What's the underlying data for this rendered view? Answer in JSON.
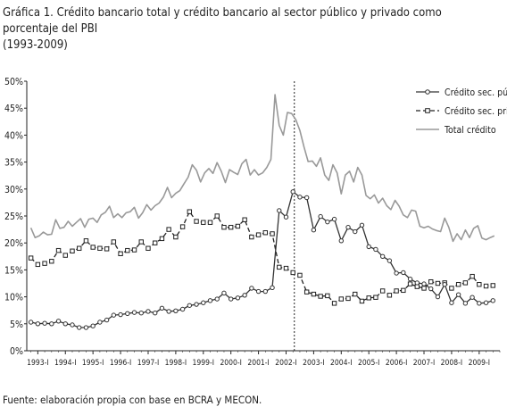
{
  "title_line1": "Gráfica 1. Crédito bancario total y crédito bancario al sector público y privado como porcentaje del PBI",
  "title_line2": "(1993-2009)",
  "source": "Fuente: elaboración propia con base en BCRA y MECON.",
  "chart_data": {
    "type": "line",
    "x_ticks": [
      "1993-I",
      "1994-I",
      "1995-I",
      "1996-I",
      "1997-I",
      "1998-I",
      "1999-I",
      "2000-I",
      "2001-I",
      "2002-I",
      "2003-I",
      "2004-I",
      "2005-I",
      "2006-I",
      "2007-I",
      "2008-I",
      "2009-I"
    ],
    "y_ticks": [
      "0%",
      "5%",
      "10%",
      "15%",
      "20%",
      "25%",
      "30%",
      "35%",
      "40%",
      "45%",
      "50%"
    ],
    "ylim": [
      0,
      50
    ],
    "x_range": [
      1992.6,
      2009.75
    ],
    "vertical_line_x": 2002.3,
    "legend_position": "top-right",
    "series": [
      {
        "name": "Crédito sec. púb.",
        "style": "solid-circle",
        "color": "#333333",
        "x": [
          1992.75,
          1993.0,
          1993.25,
          1993.5,
          1993.75,
          1994.0,
          1994.25,
          1994.5,
          1994.75,
          1995.0,
          1995.25,
          1995.5,
          1995.75,
          1996.0,
          1996.25,
          1996.5,
          1996.75,
          1997.0,
          1997.25,
          1997.5,
          1997.75,
          1998.0,
          1998.25,
          1998.5,
          1998.75,
          1999.0,
          1999.25,
          1999.5,
          1999.75,
          2000.0,
          2000.25,
          2000.5,
          2000.75,
          2001.0,
          2001.25,
          2001.5,
          2001.75,
          2002.0,
          2002.25,
          2002.5,
          2002.75,
          2003.0,
          2003.25,
          2003.5,
          2003.75,
          2004.0,
          2004.25,
          2004.5,
          2004.75,
          2005.0,
          2005.25,
          2005.5,
          2005.75,
          2006.0,
          2006.25,
          2006.5,
          2006.75,
          2007.0,
          2007.25,
          2007.5,
          2007.75,
          2008.0,
          2008.25,
          2008.5,
          2008.75,
          2009.0,
          2009.25,
          2009.5
        ],
        "values": [
          5.3,
          5.0,
          5.1,
          5.0,
          5.5,
          5.0,
          4.8,
          4.3,
          4.3,
          4.6,
          5.3,
          5.7,
          6.6,
          6.7,
          6.9,
          7.1,
          7.0,
          7.3,
          7.0,
          7.9,
          7.3,
          7.4,
          7.7,
          8.4,
          8.6,
          8.9,
          9.3,
          9.6,
          10.7,
          9.6,
          9.8,
          10.3,
          11.6,
          11.0,
          11.0,
          11.7,
          26.0,
          24.8,
          29.5,
          28.5,
          28.4,
          22.4,
          24.9,
          23.9,
          24.4,
          20.4,
          22.9,
          22.1,
          23.3,
          19.3,
          18.8,
          17.5,
          16.7,
          14.4,
          14.5,
          13.3,
          12.6,
          12.4,
          11.5,
          10.0,
          12.3,
          8.9,
          10.4,
          8.8,
          9.9,
          8.8,
          8.9,
          9.3
        ]
      },
      {
        "name": "Crédito sec. priv.",
        "style": "dashed-square",
        "color": "#222222",
        "x": [
          1992.75,
          1993.0,
          1993.25,
          1993.5,
          1993.75,
          1994.0,
          1994.25,
          1994.5,
          1994.75,
          1995.0,
          1995.25,
          1995.5,
          1995.75,
          1996.0,
          1996.25,
          1996.5,
          1996.75,
          1997.0,
          1997.25,
          1997.5,
          1997.75,
          1998.0,
          1998.25,
          1998.5,
          1998.75,
          1999.0,
          1999.25,
          1999.5,
          1999.75,
          2000.0,
          2000.25,
          2000.5,
          2000.75,
          2001.0,
          2001.25,
          2001.5,
          2001.75,
          2002.0,
          2002.25,
          2002.5,
          2002.75,
          2003.0,
          2003.25,
          2003.5,
          2003.75,
          2004.0,
          2004.25,
          2004.5,
          2004.75,
          2005.0,
          2005.25,
          2005.5,
          2005.75,
          2006.0,
          2006.25,
          2006.5,
          2006.75,
          2007.0,
          2007.25,
          2007.5,
          2007.75,
          2008.0,
          2008.25,
          2008.5,
          2008.75,
          2009.0,
          2009.25,
          2009.5
        ],
        "values": [
          17.2,
          16.0,
          16.2,
          16.6,
          18.6,
          17.7,
          18.5,
          19.0,
          20.4,
          19.2,
          19.0,
          18.9,
          20.2,
          18.0,
          18.6,
          18.7,
          20.2,
          19.0,
          20.0,
          20.8,
          22.5,
          21.1,
          23.0,
          25.8,
          24.0,
          23.8,
          23.8,
          25.0,
          22.9,
          22.9,
          23.1,
          24.3,
          21.1,
          21.5,
          21.9,
          21.7,
          15.5,
          15.3,
          14.5,
          14.0,
          10.9,
          10.5,
          10.1,
          10.2,
          8.8,
          9.6,
          9.7,
          10.5,
          9.2,
          9.8,
          9.9,
          11.1,
          10.3,
          11.1,
          11.2,
          12.4,
          11.9,
          11.6,
          12.8,
          12.5,
          12.6,
          11.6,
          12.3,
          12.6,
          13.8,
          12.3,
          12.0,
          12.1
        ]
      },
      {
        "name": "Total crédito",
        "style": "solid",
        "color": "#999999",
        "x": [
          1992.75,
          1992.9,
          1993.05,
          1993.2,
          1993.35,
          1993.5,
          1993.65,
          1993.8,
          1993.95,
          1994.1,
          1994.25,
          1994.4,
          1994.55,
          1994.7,
          1994.85,
          1995.0,
          1995.15,
          1995.3,
          1995.45,
          1995.6,
          1995.75,
          1995.9,
          1996.05,
          1996.2,
          1996.35,
          1996.5,
          1996.65,
          1996.8,
          1996.95,
          1997.1,
          1997.25,
          1997.4,
          1997.55,
          1997.7,
          1997.85,
          1998.0,
          1998.15,
          1998.3,
          1998.45,
          1998.6,
          1998.75,
          1998.9,
          1999.05,
          1999.2,
          1999.35,
          1999.5,
          1999.65,
          1999.8,
          1999.95,
          2000.1,
          2000.25,
          2000.4,
          2000.55,
          2000.7,
          2000.85,
          2001.0,
          2001.15,
          2001.3,
          2001.45,
          2001.6,
          2001.75,
          2001.9,
          2002.05,
          2002.2,
          2002.35,
          2002.5,
          2002.65,
          2002.8,
          2002.95,
          2003.1,
          2003.25,
          2003.4,
          2003.55,
          2003.7,
          2003.85,
          2004.0,
          2004.15,
          2004.3,
          2004.45,
          2004.6,
          2004.75,
          2004.9,
          2005.05,
          2005.2,
          2005.35,
          2005.5,
          2005.65,
          2005.8,
          2005.95,
          2006.1,
          2006.25,
          2006.4,
          2006.55,
          2006.7,
          2006.85,
          2007.0,
          2007.15,
          2007.3,
          2007.45,
          2007.6,
          2007.75,
          2007.9,
          2008.05,
          2008.2,
          2008.35,
          2008.5,
          2008.65,
          2008.8,
          2008.95,
          2009.1,
          2009.25,
          2009.4,
          2009.55
        ],
        "values": [
          22.8,
          21.0,
          21.3,
          22.0,
          21.5,
          21.6,
          24.3,
          22.7,
          22.9,
          24.0,
          23.1,
          23.8,
          24.5,
          22.9,
          24.4,
          24.6,
          23.8,
          25.2,
          25.7,
          26.8,
          24.7,
          25.4,
          24.7,
          25.6,
          25.8,
          26.6,
          24.6,
          25.6,
          27.1,
          26.1,
          26.9,
          27.4,
          28.5,
          30.3,
          28.4,
          29.2,
          29.7,
          31.0,
          32.2,
          34.5,
          33.5,
          31.3,
          33.0,
          33.8,
          32.9,
          34.9,
          33.3,
          31.2,
          33.6,
          33.1,
          32.7,
          34.7,
          35.5,
          32.6,
          33.6,
          32.6,
          33.0,
          34.0,
          35.5,
          47.5,
          41.8,
          40.0,
          44.2,
          44.0,
          42.9,
          40.9,
          37.8,
          35.1,
          35.2,
          34.2,
          35.8,
          32.6,
          31.6,
          34.5,
          33.0,
          29.1,
          32.6,
          33.3,
          31.3,
          34.0,
          32.6,
          28.8,
          28.2,
          28.9,
          27.4,
          28.3,
          26.9,
          26.2,
          27.9,
          26.8,
          25.2,
          24.7,
          26.1,
          25.9,
          23.1,
          22.8,
          23.1,
          22.6,
          22.3,
          22.1,
          24.6,
          22.9,
          20.3,
          21.7,
          20.6,
          22.4,
          21.0,
          22.7,
          23.2,
          20.9,
          20.6,
          21.0,
          21.3
        ]
      }
    ]
  }
}
